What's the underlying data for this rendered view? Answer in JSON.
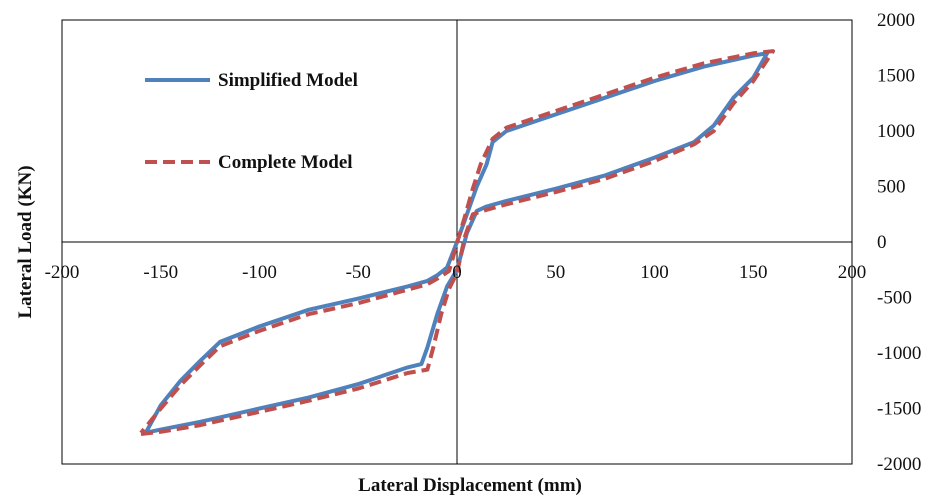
{
  "chart_data": {
    "type": "line",
    "title": "",
    "xlabel": "Lateral Displacement (mm)",
    "ylabel": "Lateral  Load (KN)",
    "xlim": [
      -200,
      200
    ],
    "ylim": [
      -2000,
      2000
    ],
    "x_ticks": [
      -200,
      -150,
      -100,
      -50,
      0,
      50,
      100,
      150,
      200
    ],
    "y_ticks": [
      2000,
      1500,
      1000,
      500,
      0,
      -500,
      -1000,
      -1500,
      -2000
    ],
    "x_tick_labels": [
      "-200",
      "-150",
      "-100",
      "-50",
      "0",
      "50",
      "100",
      "150",
      "200"
    ],
    "y_tick_labels": [
      "2000",
      "1500",
      "1000",
      "500",
      "0",
      "-500",
      "-1000",
      "-1500",
      "-2000"
    ],
    "grid": false,
    "legend_position": "top-left",
    "series": [
      {
        "name": "Simplified Model",
        "color": "#4f81bd",
        "style": "solid",
        "points": [
          [
            -157,
            -1715
          ],
          [
            -150,
            -1690
          ],
          [
            -130,
            -1620
          ],
          [
            -100,
            -1500
          ],
          [
            -75,
            -1400
          ],
          [
            -50,
            -1280
          ],
          [
            -25,
            -1130
          ],
          [
            -18,
            -1100
          ],
          [
            -15,
            -950
          ],
          [
            -10,
            -650
          ],
          [
            -5,
            -400
          ],
          [
            0,
            -250
          ],
          [
            5,
            80
          ],
          [
            10,
            280
          ],
          [
            15,
            320
          ],
          [
            25,
            370
          ],
          [
            50,
            480
          ],
          [
            75,
            600
          ],
          [
            100,
            760
          ],
          [
            120,
            900
          ],
          [
            130,
            1050
          ],
          [
            140,
            1300
          ],
          [
            150,
            1480
          ],
          [
            157,
            1700
          ],
          [
            150,
            1680
          ],
          [
            125,
            1580
          ],
          [
            100,
            1450
          ],
          [
            75,
            1300
          ],
          [
            50,
            1150
          ],
          [
            25,
            1000
          ],
          [
            18,
            900
          ],
          [
            15,
            700
          ],
          [
            10,
            500
          ],
          [
            5,
            250
          ],
          [
            0,
            0
          ],
          [
            -5,
            -230
          ],
          [
            -10,
            -300
          ],
          [
            -15,
            -350
          ],
          [
            -25,
            -400
          ],
          [
            -50,
            -510
          ],
          [
            -75,
            -610
          ],
          [
            -100,
            -760
          ],
          [
            -120,
            -900
          ],
          [
            -130,
            -1070
          ],
          [
            -140,
            -1250
          ],
          [
            -150,
            -1470
          ],
          [
            -157,
            -1700
          ]
        ]
      },
      {
        "name": "Complete Model",
        "color": "#c0504d",
        "style": "dashed",
        "points": [
          [
            -160,
            -1730
          ],
          [
            -150,
            -1710
          ],
          [
            -130,
            -1650
          ],
          [
            -100,
            -1530
          ],
          [
            -75,
            -1430
          ],
          [
            -50,
            -1320
          ],
          [
            -25,
            -1180
          ],
          [
            -15,
            -1150
          ],
          [
            -12,
            -950
          ],
          [
            -8,
            -650
          ],
          [
            -4,
            -420
          ],
          [
            0,
            -280
          ],
          [
            4,
            50
          ],
          [
            8,
            250
          ],
          [
            15,
            290
          ],
          [
            25,
            340
          ],
          [
            50,
            450
          ],
          [
            75,
            570
          ],
          [
            100,
            730
          ],
          [
            120,
            880
          ],
          [
            130,
            1000
          ],
          [
            140,
            1250
          ],
          [
            150,
            1450
          ],
          [
            160,
            1720
          ],
          [
            150,
            1700
          ],
          [
            125,
            1610
          ],
          [
            100,
            1480
          ],
          [
            75,
            1330
          ],
          [
            50,
            1180
          ],
          [
            25,
            1030
          ],
          [
            18,
            930
          ],
          [
            12,
            700
          ],
          [
            8,
            480
          ],
          [
            4,
            230
          ],
          [
            0,
            -10
          ],
          [
            -4,
            -260
          ],
          [
            -10,
            -330
          ],
          [
            -15,
            -380
          ],
          [
            -25,
            -430
          ],
          [
            -50,
            -550
          ],
          [
            -75,
            -650
          ],
          [
            -100,
            -800
          ],
          [
            -120,
            -940
          ],
          [
            -130,
            -1110
          ],
          [
            -140,
            -1290
          ],
          [
            -150,
            -1500
          ],
          [
            -160,
            -1720
          ]
        ]
      }
    ]
  }
}
